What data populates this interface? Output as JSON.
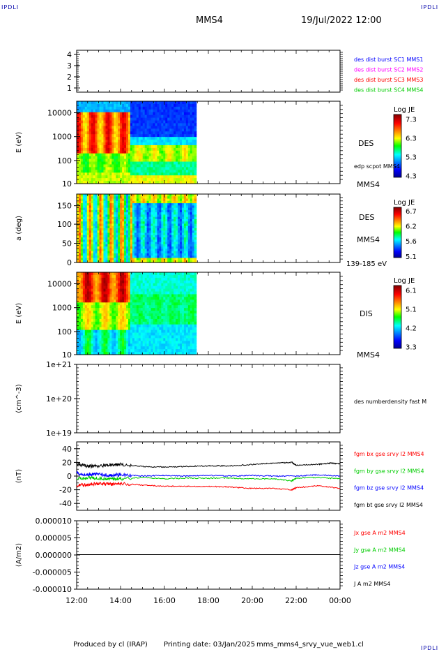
{
  "header": {
    "corner_left": "IPDLI",
    "corner_right": "IPDLI",
    "corner_bottom_right": "IPDLI",
    "title": "MMS4",
    "date": "19/Jul/2022 12:00"
  },
  "footer": {
    "produced_by": "Produced by cl (IRAP)",
    "printing_date": "Printing date: 03/Jan/2025",
    "filename": "mms_mms4_srvy_vue_web1.cl"
  },
  "time_axis": {
    "tick_labels": [
      "12:00",
      "14:00",
      "16:00",
      "18:00",
      "20:00",
      "22:00",
      "00:00"
    ],
    "start_hour": 12,
    "end_hour": 24,
    "data_end_hour": 17.45
  },
  "chart_data": [
    {
      "type": "line",
      "name": "spacecraft indicator",
      "ytick_labels": [
        "4",
        "3",
        "2",
        "1"
      ],
      "ylim": [
        0.7,
        4.3
      ],
      "legend": [
        {
          "label": "des dist burst SC1 MMS1",
          "color": "#0000ff"
        },
        {
          "label": "des dist burst SC2 MMS2",
          "color": "#ff00ff"
        },
        {
          "label": "des dist burst SC3 MMS3",
          "color": "#ff0000"
        },
        {
          "label": "des dist burst SC4 MMS4",
          "color": "#00cc00"
        }
      ]
    },
    {
      "type": "heatmap",
      "ylabel": "E (eV)",
      "yscale": "log",
      "ytick_labels": [
        "10000",
        "1000",
        "100",
        "10"
      ],
      "ylim": [
        10,
        30000
      ],
      "instrument": "DES",
      "spacecraft": "MMS4",
      "overlay": "edp scpot MMS4",
      "colorbar": {
        "title": "Log JE",
        "tick_labels": [
          "7.3",
          "6.3",
          "5.3",
          "4.3"
        ]
      }
    },
    {
      "type": "heatmap",
      "ylabel": "a (deg)",
      "ytick_labels": [
        "150",
        "100",
        "50",
        "0"
      ],
      "ylim": [
        0,
        180
      ],
      "instrument": "DES",
      "spacecraft": "MMS4",
      "energy_range": "139-185 eV",
      "colorbar": {
        "title": "Log JE",
        "tick_labels": [
          "6.7",
          "6.2",
          "5.6",
          "5.1"
        ]
      }
    },
    {
      "type": "heatmap",
      "ylabel": "E (eV)",
      "yscale": "log",
      "ytick_labels": [
        "10000",
        "1000",
        "100",
        "10"
      ],
      "ylim": [
        10,
        30000
      ],
      "instrument": "DIS",
      "spacecraft": "MMS4",
      "colorbar": {
        "title": "Log JE",
        "tick_labels": [
          "6.1",
          "5.1",
          "4.2",
          "3.3"
        ]
      }
    },
    {
      "type": "line",
      "ylabel": "(cm^-3)",
      "yscale": "log",
      "ytick_labels": [
        "1e+21",
        "1e+20",
        "1e+19"
      ],
      "ylim": [
        1e+19,
        1e+21
      ],
      "legend": [
        {
          "label": "des numberdensity fast M",
          "color": "#000000"
        }
      ]
    },
    {
      "type": "line",
      "ylabel": "(nT)",
      "ytick_labels": [
        "40",
        "20",
        "0",
        "-20",
        "-40"
      ],
      "ylim": [
        -50,
        50
      ],
      "legend": [
        {
          "label": "fgm bx gse srvy l2 MMS4",
          "color": "#ff0000"
        },
        {
          "label": "fgm by gse srvy l2 MMS4",
          "color": "#00cc00"
        },
        {
          "label": "fgm bz gse srvy l2 MMS4",
          "color": "#0000ff"
        },
        {
          "label": "fgm bt gse srvy l2 MMS4",
          "color": "#000000"
        }
      ],
      "series": [
        {
          "name": "fgm bt gse srvy l2 MMS4",
          "color": "#000000",
          "x": [
            12.0,
            12.5,
            13.0,
            13.5,
            14.0,
            15.0,
            16.0,
            17.0,
            18.0,
            19.0,
            20.0,
            21.0,
            21.8,
            22.0,
            23.0,
            23.5,
            24.0
          ],
          "y": [
            18,
            14,
            15,
            16,
            17,
            14,
            13,
            14,
            15,
            15,
            17,
            19,
            20,
            16,
            17,
            19,
            18
          ]
        },
        {
          "name": "fgm bz gse srvy l2 MMS4",
          "color": "#0000ff",
          "x": [
            12.0,
            12.5,
            13.0,
            13.5,
            14.0,
            15.0,
            16.0,
            17.0,
            18.0,
            19.0,
            20.0,
            21.0,
            22.0,
            23.0,
            24.0
          ],
          "y": [
            4,
            2,
            3,
            1,
            2,
            0,
            1,
            0,
            1,
            0,
            1,
            0,
            0,
            2,
            0
          ]
        },
        {
          "name": "fgm by gse srvy l2 MMS4",
          "color": "#00cc00",
          "x": [
            12.0,
            12.5,
            13.0,
            13.5,
            14.0,
            15.0,
            16.0,
            17.0,
            18.0,
            19.0,
            20.0,
            21.0,
            21.8,
            22.0,
            23.0,
            24.0
          ],
          "y": [
            -4,
            -3,
            -3,
            -4,
            -4,
            -2,
            -4,
            -3,
            -3,
            -3,
            -4,
            -4,
            -7,
            -3,
            -2,
            -4
          ]
        },
        {
          "name": "fgm bx gse srvy l2 MMS4",
          "color": "#ff0000",
          "x": [
            12.0,
            12.5,
            13.0,
            13.5,
            14.0,
            15.0,
            16.0,
            17.0,
            18.0,
            19.0,
            20.0,
            21.0,
            21.8,
            22.0,
            23.0,
            24.0
          ],
          "y": [
            -14,
            -12,
            -11,
            -12,
            -11,
            -13,
            -15,
            -15,
            -15,
            -16,
            -18,
            -18,
            -20,
            -17,
            -14,
            -18
          ]
        }
      ]
    },
    {
      "type": "line",
      "ylabel": "(A/m2)",
      "ytick_labels": [
        "0.000010",
        "0.000005",
        "0.000000",
        "-0.000005",
        "-0.000010"
      ],
      "ylim": [
        -1e-05,
        1e-05
      ],
      "legend": [
        {
          "label": "Jx gse A m2 MMS4",
          "color": "#ff0000"
        },
        {
          "label": "Jy gse A m2 MMS4",
          "color": "#00cc00"
        },
        {
          "label": "Jz gse A m2 MMS4",
          "color": "#0000ff"
        },
        {
          "label": "J A m2 MMS4",
          "color": "#000000"
        }
      ],
      "series": [
        {
          "name": "J A m2 MMS4",
          "color": "#000000",
          "x": [
            12.0,
            24.0
          ],
          "y": [
            1e-07,
            1e-07
          ]
        }
      ]
    }
  ]
}
